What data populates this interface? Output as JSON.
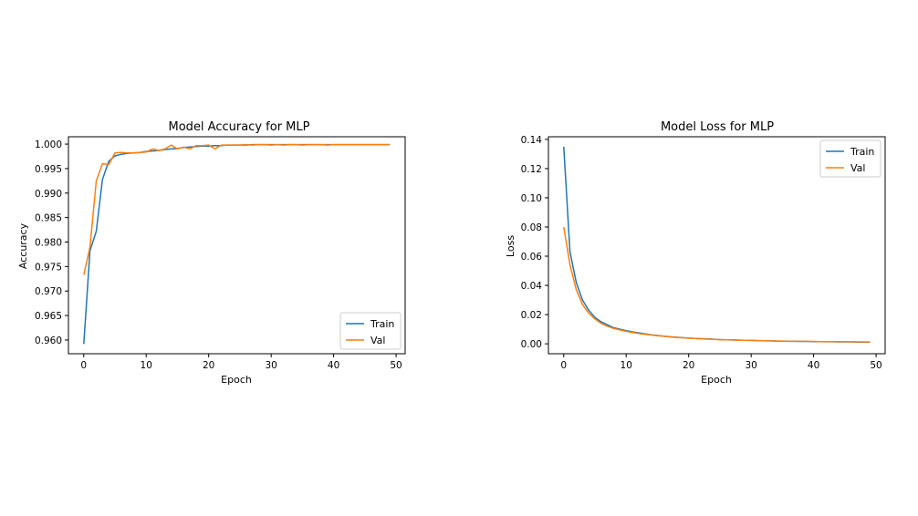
{
  "chart_data": [
    {
      "type": "line",
      "title": "Model Accuracy for MLP",
      "xlabel": "Epoch",
      "ylabel": "Accuracy",
      "xlim": [
        -2.45,
        51.45
      ],
      "ylim": [
        0.9572,
        1.0015
      ],
      "xticks": [
        0,
        10,
        20,
        30,
        40,
        50
      ],
      "yticks": [
        0.96,
        0.965,
        0.97,
        0.975,
        0.98,
        0.985,
        0.99,
        0.995,
        1.0
      ],
      "ytick_decimals": 3,
      "legend_position": "lower-right",
      "grid": false,
      "x": [
        0,
        1,
        2,
        3,
        4,
        5,
        6,
        7,
        8,
        9,
        10,
        11,
        12,
        13,
        14,
        15,
        16,
        17,
        18,
        19,
        20,
        21,
        22,
        23,
        24,
        25,
        26,
        27,
        28,
        29,
        30,
        31,
        32,
        33,
        34,
        35,
        36,
        37,
        38,
        39,
        40,
        41,
        42,
        43,
        44,
        45,
        46,
        47,
        48,
        49
      ],
      "series": [
        {
          "name": "Train",
          "color": "#1f77b4",
          "values": [
            0.9592,
            0.9782,
            0.9822,
            0.9928,
            0.9965,
            0.9976,
            0.9979,
            0.9981,
            0.9982,
            0.9983,
            0.9985,
            0.9986,
            0.9987,
            0.9989,
            0.999,
            0.9991,
            0.9993,
            0.9994,
            0.9995,
            0.9996,
            0.9996,
            0.9997,
            0.9997,
            0.9998,
            0.9998,
            0.9998,
            0.9998,
            0.9999,
            0.9999,
            0.9999,
            0.9999,
            0.9999,
            0.9999,
            0.9999,
            0.9999,
            0.9999,
            0.9999,
            0.9999,
            0.9999,
            0.9999,
            0.9999,
            0.9999,
            0.9999,
            0.9999,
            0.9999,
            0.9999,
            0.9999,
            0.9999,
            0.9999,
            0.9999
          ]
        },
        {
          "name": "Val",
          "color": "#ff7f0e",
          "values": [
            0.9733,
            0.979,
            0.9925,
            0.996,
            0.9958,
            0.9982,
            0.9983,
            0.9982,
            0.9982,
            0.9983,
            0.9984,
            0.999,
            0.9987,
            0.999,
            0.9998,
            0.999,
            0.9994,
            0.999,
            0.9997,
            0.9997,
            0.9998,
            0.999,
            0.9998,
            0.9998,
            0.9998,
            0.9998,
            0.9999,
            0.9998,
            0.9999,
            0.9999,
            0.9998,
            0.9999,
            0.9998,
            0.9999,
            0.9999,
            0.9998,
            0.9999,
            0.9999,
            0.9999,
            0.9998,
            0.9999,
            0.9999,
            0.9999,
            0.9999,
            0.9999,
            0.9999,
            0.9999,
            0.9999,
            0.9999,
            0.9999
          ]
        }
      ]
    },
    {
      "type": "line",
      "title": "Model Loss for MLP",
      "xlabel": "Epoch",
      "ylabel": "Loss",
      "xlim": [
        -2.45,
        51.45
      ],
      "ylim": [
        -0.0068,
        0.1418
      ],
      "xticks": [
        0,
        10,
        20,
        30,
        40,
        50
      ],
      "yticks": [
        0.0,
        0.02,
        0.04,
        0.06,
        0.08,
        0.1,
        0.12,
        0.14
      ],
      "ytick_decimals": 2,
      "legend_position": "top-right",
      "grid": false,
      "x": [
        0,
        1,
        2,
        3,
        4,
        5,
        6,
        7,
        8,
        9,
        10,
        11,
        12,
        13,
        14,
        15,
        16,
        17,
        18,
        19,
        20,
        21,
        22,
        23,
        24,
        25,
        26,
        27,
        28,
        29,
        30,
        31,
        32,
        33,
        34,
        35,
        36,
        37,
        38,
        39,
        40,
        41,
        42,
        43,
        44,
        45,
        46,
        47,
        48,
        49
      ],
      "series": [
        {
          "name": "Train",
          "color": "#1f77b4",
          "values": [
            0.135,
            0.063,
            0.042,
            0.03,
            0.023,
            0.018,
            0.015,
            0.013,
            0.011,
            0.01,
            0.009,
            0.0082,
            0.0075,
            0.0068,
            0.0062,
            0.0057,
            0.0052,
            0.0048,
            0.0045,
            0.0042,
            0.0039,
            0.0037,
            0.0035,
            0.0033,
            0.0031,
            0.0029,
            0.0027,
            0.0026,
            0.0025,
            0.0024,
            0.0023,
            0.0022,
            0.0021,
            0.002,
            0.0019,
            0.0018,
            0.0017,
            0.0017,
            0.0016,
            0.0016,
            0.0015,
            0.0015,
            0.0014,
            0.0014,
            0.0013,
            0.0013,
            0.0013,
            0.0012,
            0.0012,
            0.0012
          ]
        },
        {
          "name": "Val",
          "color": "#ff7f0e",
          "values": [
            0.08,
            0.054,
            0.037,
            0.027,
            0.021,
            0.017,
            0.014,
            0.012,
            0.0105,
            0.0095,
            0.0085,
            0.0078,
            0.0071,
            0.0065,
            0.006,
            0.0055,
            0.0051,
            0.0047,
            0.0044,
            0.0041,
            0.0038,
            0.0036,
            0.0034,
            0.0032,
            0.003,
            0.0028,
            0.0027,
            0.0026,
            0.0025,
            0.0024,
            0.0023,
            0.0022,
            0.0021,
            0.002,
            0.0019,
            0.0019,
            0.0018,
            0.0017,
            0.0017,
            0.0016,
            0.0016,
            0.0015,
            0.0015,
            0.0015,
            0.0014,
            0.0014,
            0.0014,
            0.0013,
            0.0013,
            0.0013
          ]
        }
      ]
    }
  ]
}
